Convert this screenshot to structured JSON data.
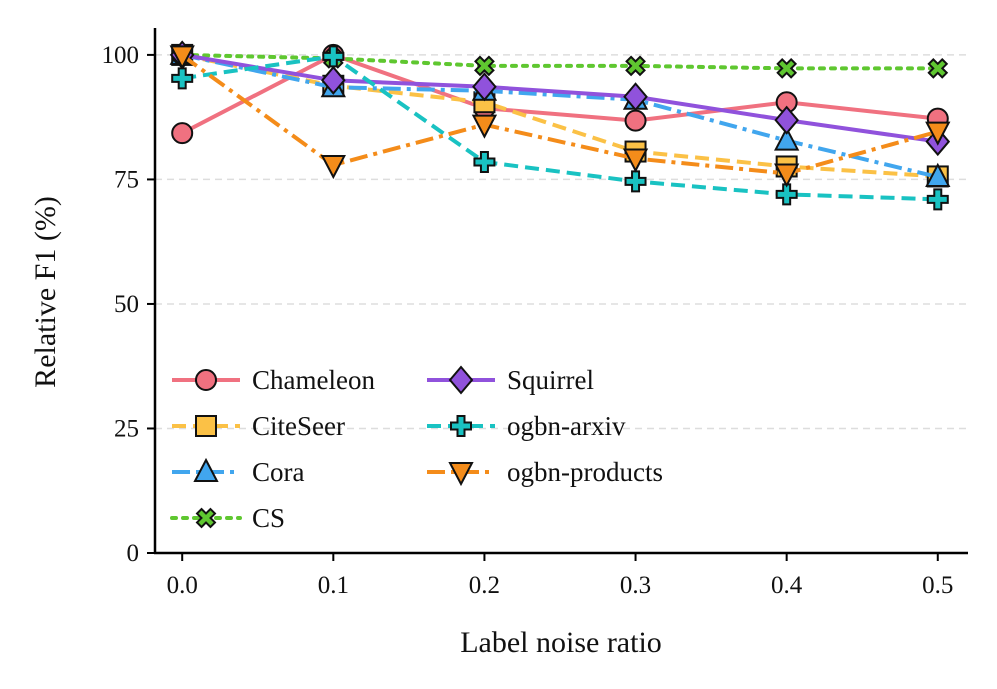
{
  "chart_data": {
    "type": "line",
    "title": "",
    "xlabel": "Label noise ratio",
    "ylabel": "Relative F1 (%)",
    "x": [
      0.0,
      0.1,
      0.2,
      0.3,
      0.4,
      0.5
    ],
    "x_tick_labels": [
      "0.0",
      "0.1",
      "0.2",
      "0.3",
      "0.4",
      "0.5"
    ],
    "y_ticks": [
      0,
      25,
      50,
      75,
      100
    ],
    "y_tick_labels": [
      "0",
      "25",
      "50",
      "75",
      "100"
    ],
    "xlim": [
      -0.018,
      0.52
    ],
    "ylim": [
      0,
      105
    ],
    "grid": "horizontal dashed",
    "legend_position": "lower-left, two columns",
    "series": [
      {
        "name": "Chameleon",
        "values": [
          84.3,
          100.0,
          89.3,
          86.8,
          90.5,
          87.2
        ],
        "color": "#f07180",
        "dash": "solid",
        "marker": "circle"
      },
      {
        "name": "CiteSeer",
        "values": [
          100.0,
          93.8,
          90.5,
          80.6,
          77.6,
          75.6
        ],
        "color": "#fbc146",
        "dash": "dashed",
        "marker": "square"
      },
      {
        "name": "Cora",
        "values": [
          100.0,
          93.5,
          92.8,
          91.0,
          82.8,
          75.5
        ],
        "color": "#41a6ee",
        "dash": "dashdot",
        "marker": "triangle-up"
      },
      {
        "name": "CS",
        "values": [
          100.0,
          99.3,
          97.8,
          97.8,
          97.3,
          97.3
        ],
        "color": "#5fc730",
        "dash": "dotted",
        "marker": "x"
      },
      {
        "name": "Squirrel",
        "values": [
          100.0,
          94.9,
          93.6,
          91.6,
          86.9,
          82.6
        ],
        "color": "#9052dc",
        "dash": "solid",
        "marker": "diamond"
      },
      {
        "name": "ogbn-arxiv",
        "values": [
          95.3,
          99.7,
          78.5,
          74.6,
          72.0,
          71.0
        ],
        "color": "#19c2c2",
        "dash": "dashed",
        "marker": "plus"
      },
      {
        "name": "ogbn-products",
        "values": [
          99.9,
          77.9,
          86.0,
          79.2,
          76.2,
          84.6
        ],
        "color": "#f48c1a",
        "dash": "dashdot",
        "marker": "triangle-down"
      }
    ]
  }
}
